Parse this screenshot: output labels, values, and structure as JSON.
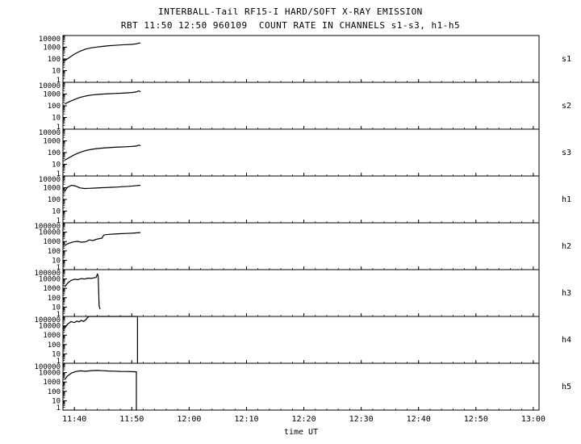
{
  "chart_data": {
    "type": "line",
    "title": "INTERBALL-Tail RF15-I HARD/SOFT X-RAY EMISSION",
    "subtitle": "RBT 11:50 12:50 960109  COUNT RATE IN CHANNELS s1-s3, h1-h5",
    "xlabel": "time UT",
    "line_color": "#000000",
    "grid": false,
    "x_axis": {
      "start_time": "11:38",
      "domain_minutes": [
        0,
        83
      ],
      "ticks": [
        {
          "minute": 2,
          "label": "11:40"
        },
        {
          "minute": 12,
          "label": "11:50"
        },
        {
          "minute": 22,
          "label": "12:00"
        },
        {
          "minute": 32,
          "label": "12:10"
        },
        {
          "minute": 42,
          "label": "12:20"
        },
        {
          "minute": 52,
          "label": "12:30"
        },
        {
          "minute": 62,
          "label": "12:40"
        },
        {
          "minute": 72,
          "label": "12:50"
        },
        {
          "minute": 82,
          "label": "13:00"
        }
      ]
    },
    "y_scale": "log",
    "panels": [
      {
        "channel": "s1",
        "ylim": [
          1,
          10000
        ],
        "x": [
          0.3,
          1,
          2,
          3,
          4,
          5,
          6,
          7,
          8,
          9,
          10,
          11,
          12,
          12.8,
          13.2,
          13.5
        ],
        "y": [
          70,
          120,
          260,
          460,
          700,
          900,
          1050,
          1200,
          1350,
          1450,
          1550,
          1650,
          1750,
          1950,
          2250,
          2300
        ]
      },
      {
        "channel": "s2",
        "ylim": [
          1,
          10000
        ],
        "x": [
          0.3,
          1,
          2,
          3,
          4,
          5,
          6,
          7,
          8,
          9,
          10,
          11,
          12,
          12.8,
          13.2,
          13.5
        ],
        "y": [
          140,
          210,
          340,
          520,
          680,
          820,
          920,
          1000,
          1060,
          1120,
          1180,
          1250,
          1350,
          1500,
          1900,
          1550
        ]
      },
      {
        "channel": "s3",
        "ylim": [
          1,
          10000
        ],
        "x": [
          0.3,
          1,
          2,
          3,
          4,
          5,
          6,
          7,
          8,
          9,
          10,
          11,
          12,
          12.8,
          13.2,
          13.5
        ],
        "y": [
          22,
          35,
          65,
          105,
          150,
          190,
          220,
          245,
          265,
          285,
          300,
          315,
          335,
          360,
          430,
          390
        ]
      },
      {
        "channel": "h1",
        "ylim": [
          1,
          10000
        ],
        "x": [
          0.3,
          0.8,
          1.5,
          2.2,
          3,
          3.8,
          4.5,
          5.5,
          6.5,
          7.5,
          8.5,
          9.5,
          10.5,
          11.5,
          12.5,
          13.5
        ],
        "y": [
          480,
          1100,
          1600,
          1400,
          950,
          850,
          880,
          930,
          980,
          1030,
          1080,
          1140,
          1220,
          1320,
          1450,
          1600
        ]
      },
      {
        "channel": "h2",
        "ylim": [
          1,
          100000
        ],
        "x": [
          0.3,
          1,
          1.8,
          2.5,
          3.2,
          4,
          4.6,
          5.2,
          5.8,
          6.4,
          6.8,
          7.1,
          7.4,
          8,
          9,
          10,
          11,
          12,
          13,
          13.5
        ],
        "y": [
          380,
          650,
          900,
          1050,
          850,
          950,
          1500,
          1300,
          1700,
          2100,
          2300,
          4800,
          5300,
          5800,
          6300,
          6800,
          7300,
          7800,
          8600,
          9000
        ]
      },
      {
        "channel": "h3",
        "ylim": [
          1,
          100000
        ],
        "x": [
          0.3,
          0.8,
          1.4,
          2,
          2.6,
          3.2,
          3.8,
          4.4,
          5,
          5.4,
          5.8,
          6,
          6.15,
          6.3,
          6.4,
          6.5
        ],
        "y": [
          1400,
          3500,
          7000,
          9500,
          8500,
          11000,
          10000,
          12500,
          11500,
          13500,
          15000,
          35000,
          20000,
          15,
          8,
          6
        ]
      },
      {
        "channel": "h4",
        "ylim": [
          1,
          100000
        ],
        "x": [
          0.3,
          0.8,
          1.4,
          2,
          2.4,
          2.8,
          3.2,
          3.6,
          4,
          4.3,
          4.6,
          5,
          6,
          8,
          10,
          12,
          13,
          13
        ],
        "y": [
          5500,
          15000,
          28000,
          22000,
          32000,
          26000,
          38000,
          30000,
          45000,
          80000,
          100000,
          100000,
          100000,
          100000,
          100000,
          100000,
          100000,
          1
        ]
      },
      {
        "channel": "h5",
        "ylim": [
          1,
          100000
        ],
        "x": [
          0.3,
          0.8,
          1.5,
          2.2,
          3,
          4,
          5,
          6,
          7,
          8,
          9,
          10,
          11,
          12,
          12.8,
          12.8
        ],
        "y": [
          1800,
          4500,
          9000,
          13000,
          15500,
          14000,
          16500,
          17000,
          16000,
          15000,
          14200,
          13600,
          13100,
          12700,
          12300,
          1
        ]
      }
    ]
  }
}
